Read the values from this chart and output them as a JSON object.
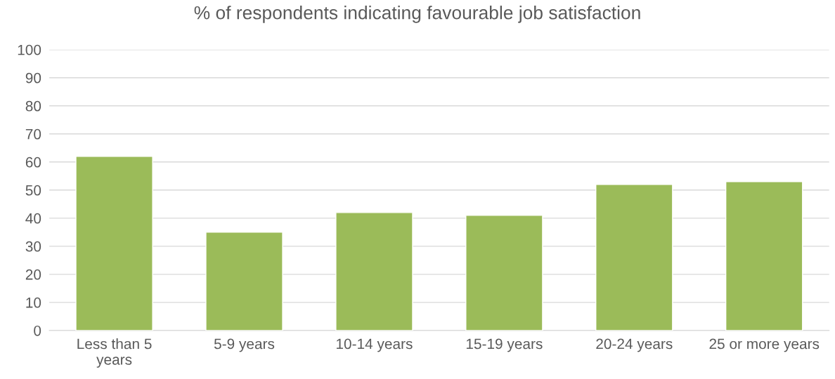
{
  "chart_data": {
    "type": "bar",
    "title": "% of respondents indicating favourable job satisfaction",
    "categories": [
      "Less than 5\nyears",
      "5-9 years",
      "10-14 years",
      "15-19 years",
      "20-24 years",
      "25 or more years"
    ],
    "values": [
      62,
      35,
      42,
      41,
      52,
      53
    ],
    "color": "#9bbb59",
    "ylim": [
      0,
      100
    ],
    "yticks": [
      0,
      10,
      20,
      30,
      40,
      50,
      60,
      70,
      80,
      90,
      100
    ],
    "grid": "y",
    "legend": false
  }
}
